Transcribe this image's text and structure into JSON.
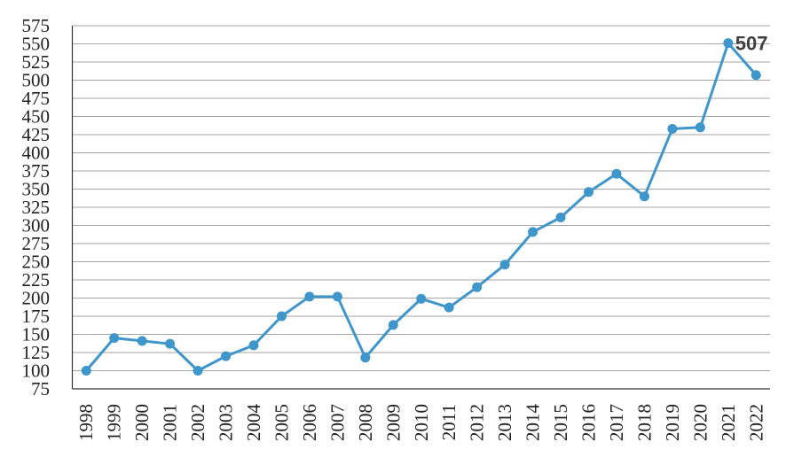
{
  "chart_data": {
    "type": "line",
    "categories": [
      "1998",
      "1999",
      "2000",
      "2001",
      "2002",
      "2003",
      "2004",
      "2005",
      "2006",
      "2007",
      "2008",
      "2009",
      "2010",
      "2011",
      "2012",
      "2013",
      "2014",
      "2015",
      "2016",
      "2017",
      "2018",
      "2019",
      "2020",
      "2021",
      "2022"
    ],
    "series": [
      {
        "color": "#3e96cb",
        "values": [
          100,
          145,
          141,
          137,
          100,
          120,
          135,
          175,
          202,
          202,
          118,
          163,
          199,
          187,
          215,
          246,
          291,
          311,
          346,
          371,
          340,
          433,
          435,
          551,
          507
        ]
      }
    ],
    "ylim": [
      75,
      575
    ],
    "yticks": [
      75,
      100,
      125,
      150,
      175,
      200,
      225,
      250,
      275,
      300,
      325,
      350,
      375,
      400,
      425,
      450,
      475,
      500,
      525,
      550,
      575
    ],
    "grid": true
  }
}
